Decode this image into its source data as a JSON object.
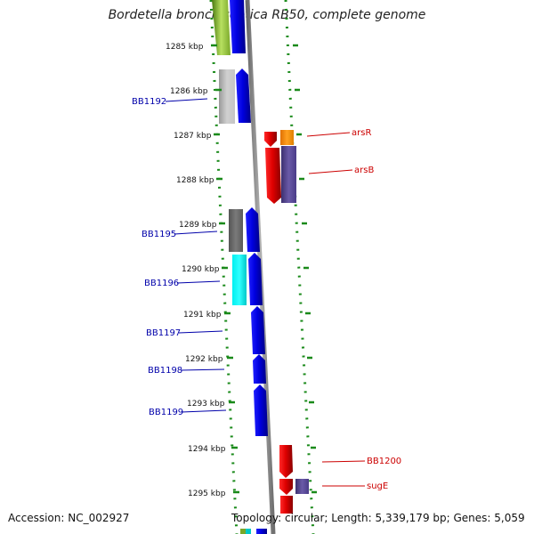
{
  "title": "Bordetella bronchiseptica RB50, complete genome",
  "accession": "Accession: NC_002927",
  "summary": "Topology: circular; Length: 5,339,179 bp; Genes: 5,059",
  "ticks": [
    "1285 kbp",
    "1286 kbp",
    "1287 kbp",
    "1288 kbp",
    "1289 kbp",
    "1290 kbp",
    "1291 kbp",
    "1292 kbp",
    "1293 kbp",
    "1294 kbp",
    "1295 kbp"
  ],
  "left_labels": [
    "BB1192",
    "BB1195",
    "BB1196",
    "BB1197",
    "BB1198",
    "BB1199"
  ],
  "right_labels": [
    "arsR",
    "arsB",
    "BB1200",
    "sugE"
  ],
  "colors": {
    "backbone": "#8a8a8a",
    "dotted_track": "#1a8a1a",
    "forward_gene": "#0000ee",
    "reverse_gene": "#ee0000",
    "gray_gene": "#b8b8b8",
    "darkgray_gene": "#666666",
    "cyan_gene": "#00e5e5",
    "orange_gene": "#ff8c00",
    "slate_gene": "#5a4a9a",
    "green_gene": "#7aa82a"
  }
}
